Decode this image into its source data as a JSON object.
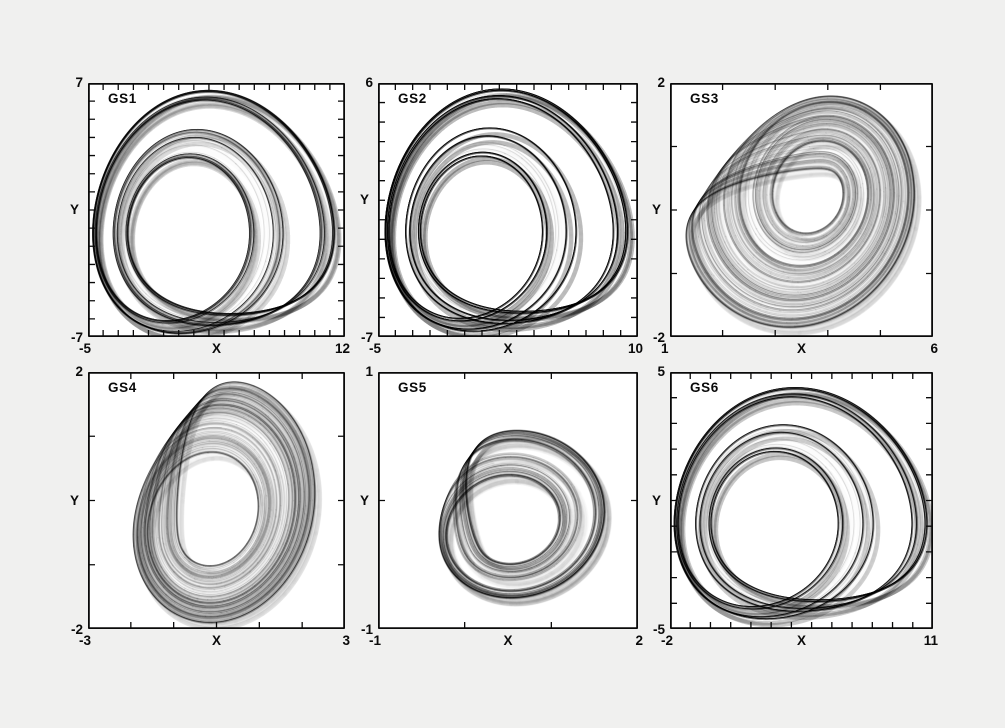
{
  "page": {
    "background": "#f0f0ef",
    "plot_background": "#ffffff",
    "axis_color": "#0a0a0a",
    "trace_color": "#000000"
  },
  "chart_data": [
    {
      "type": "line",
      "title": "GS1",
      "xlabel": "X",
      "ylabel": "Y",
      "xlim": [
        -5,
        12
      ],
      "ylim": [
        -7,
        7
      ],
      "grid": false,
      "tick_step": 1,
      "description": "x-y projection of a chaotic spiral attractor: nested outward-spiraling loops around an off-center focus with a wavy fold band weaving across the lower-left, plus faint gray scatter shadow offset to lower-right",
      "trajectory": {
        "system": "genesio-tesi",
        "params": {
          "a": 1.2,
          "b": 2.92,
          "c": 6
        },
        "init": [
          0.1,
          0.2,
          0.1
        ],
        "dt": 0.012,
        "steps": 46000,
        "transient": 4000,
        "fit_bbox_x": [
          -4.7,
          11.3
        ],
        "fit_bbox_y": [
          -6.8,
          6.6
        ],
        "mirror_x": false,
        "rotate_deg": 0
      }
    },
    {
      "type": "line",
      "title": "GS2",
      "xlabel": "X",
      "ylabel": "Y",
      "xlim": [
        -5,
        10
      ],
      "ylim": [
        -7,
        6
      ],
      "grid": false,
      "tick_step": 1,
      "description": "chaotic spiral attractor like GS1 but with a tighter, denser inner spiral core and fold weave crossing the lower half",
      "trajectory": {
        "system": "genesio-tesi",
        "params": {
          "a": 1.2,
          "b": 2.92,
          "c": 6
        },
        "init": [
          0.1,
          0.22,
          0.1
        ],
        "dt": 0.012,
        "steps": 58000,
        "transient": 4000,
        "fit_bbox_x": [
          -4.6,
          9.4
        ],
        "fit_bbox_y": [
          -6.7,
          5.7
        ],
        "mirror_x": false,
        "rotate_deg": 0
      }
    },
    {
      "type": "line",
      "title": "GS3",
      "xlabel": "X",
      "ylabel": "Y",
      "xlim": [
        1,
        6
      ],
      "ylim": [
        -2,
        2
      ],
      "grid": false,
      "tick_step": 1,
      "description": "rounded triangular attractor: sparse large loops opening to the left with a dense dark spiral core concentrated on the right side",
      "trajectory": {
        "system": "rossler",
        "params": {
          "a": 0.2,
          "b": 0.2,
          "c": 5.7
        },
        "init": [
          0.1,
          0.1,
          0.1
        ],
        "dt": 0.02,
        "steps": 40000,
        "transient": 3000,
        "fit_bbox_x": [
          1.3,
          5.65
        ],
        "fit_bbox_y": [
          -1.85,
          1.8
        ],
        "mirror_x": true,
        "rotate_deg": 0
      }
    },
    {
      "type": "line",
      "title": "GS4",
      "xlabel": "X",
      "ylabel": "Y",
      "xlim": [
        -3,
        3
      ],
      "ylim": [
        -2,
        2
      ],
      "grid": false,
      "tick_step": 1,
      "description": "lens / eye shaped band attractor: tall nested arcs, darkest compressed bands on the left edge, open hole in the middle, a chord band cutting to the lower-right with faint shadow streak",
      "trajectory": {
        "system": "rossler",
        "params": {
          "a": 0.2,
          "b": 0.2,
          "c": 4.6
        },
        "init": [
          0.1,
          0.1,
          0.1
        ],
        "dt": 0.02,
        "steps": 34000,
        "transient": 3000,
        "fit_bbox_x": [
          -1.95,
          2.3
        ],
        "fit_bbox_y": [
          -1.9,
          1.85
        ],
        "mirror_x": false,
        "rotate_deg": 95
      }
    },
    {
      "type": "line",
      "title": "GS5",
      "xlabel": "X",
      "ylabel": "Y",
      "xlim": [
        -1,
        2
      ],
      "ylim": [
        -1,
        1
      ],
      "grid": false,
      "tick_step": 1,
      "description": "compact annular band attractor: C-shaped nested rings dense on the left, crossing fold weave at the top, bright hole at center-right; occupies middle of the frame",
      "trajectory": {
        "system": "rossler",
        "params": {
          "a": 0.2,
          "b": 0.2,
          "c": 4.3
        },
        "init": [
          0.1,
          0.1,
          0.1
        ],
        "dt": 0.02,
        "steps": 30000,
        "transient": 3000,
        "fit_bbox_x": [
          -0.3,
          1.62
        ],
        "fit_bbox_y": [
          -0.76,
          0.55
        ],
        "mirror_x": false,
        "rotate_deg": 110
      }
    },
    {
      "type": "line",
      "title": "GS6",
      "xlabel": "X",
      "ylabel": "Y",
      "xlim": [
        -2,
        11
      ],
      "ylim": [
        -5,
        5
      ],
      "grid": false,
      "tick_step": 1,
      "description": "horizontally stretched spiral attractor: tight dark focus at the left, broad loops sweeping right, pronounced wavy fold band oscillating along the bottom",
      "trajectory": {
        "system": "genesio-tesi",
        "params": {
          "a": 1.2,
          "b": 2.92,
          "c": 6
        },
        "init": [
          0.12,
          0.2,
          0.1
        ],
        "dt": 0.012,
        "steps": 46000,
        "transient": 4500,
        "fit_bbox_x": [
          -1.8,
          10.7
        ],
        "fit_bbox_y": [
          -4.6,
          4.4
        ],
        "mirror_x": false,
        "rotate_deg": 0
      }
    }
  ]
}
